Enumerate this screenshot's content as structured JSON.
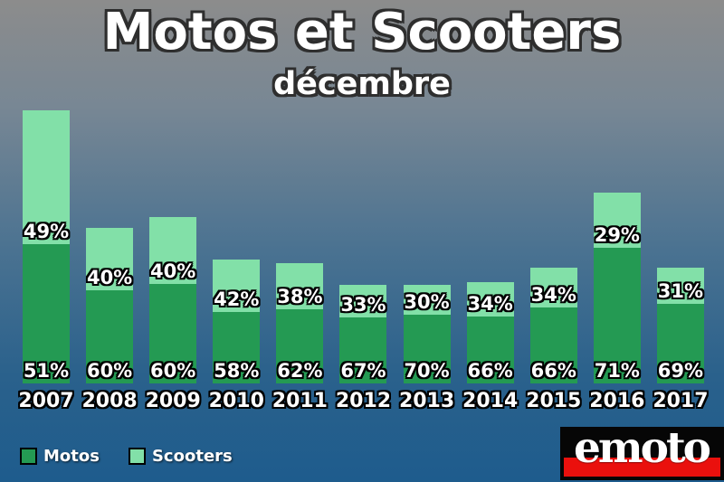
{
  "title": "Motos et Scooters",
  "subtitle": "décembre",
  "colors": {
    "motos": "#249a53",
    "scooters": "#82e0a8",
    "bg_top": "#8c8c8c",
    "bg_mid": "#4a7291",
    "bg_bottom": "#1e5c8d",
    "label_text": "#ffffff",
    "label_outline": "#000000"
  },
  "legend": [
    {
      "label": "Motos",
      "color": "#249a53"
    },
    {
      "label": "Scooters",
      "color": "#82e0a8"
    }
  ],
  "logo": {
    "text": "emoto",
    "bg_color": "#060606",
    "stripe_color": "#ea100d",
    "text_color": "#ffffff"
  },
  "chart_data": {
    "type": "bar",
    "stacked": true,
    "title": "Motos et Scooters",
    "subtitle": "décembre",
    "categories": [
      "2007",
      "2008",
      "2009",
      "2010",
      "2011",
      "2012",
      "2013",
      "2014",
      "2015",
      "2016",
      "2017"
    ],
    "series": [
      {
        "name": "Motos",
        "values_pct": [
          51,
          60,
          60,
          58,
          62,
          67,
          70,
          66,
          66,
          71,
          69
        ]
      },
      {
        "name": "Scooters",
        "values_pct": [
          49,
          40,
          40,
          42,
          38,
          33,
          30,
          34,
          34,
          29,
          31
        ]
      }
    ],
    "totals_relative_2007_eq_100": [
      100,
      57,
      61,
      45.5,
      44,
      36,
      36,
      37,
      42.5,
      70,
      42.5
    ],
    "labels_unit": "%",
    "value_labels": "shown inside each segment",
    "legend_position": "bottom-left",
    "axes": "none",
    "grid": false
  }
}
